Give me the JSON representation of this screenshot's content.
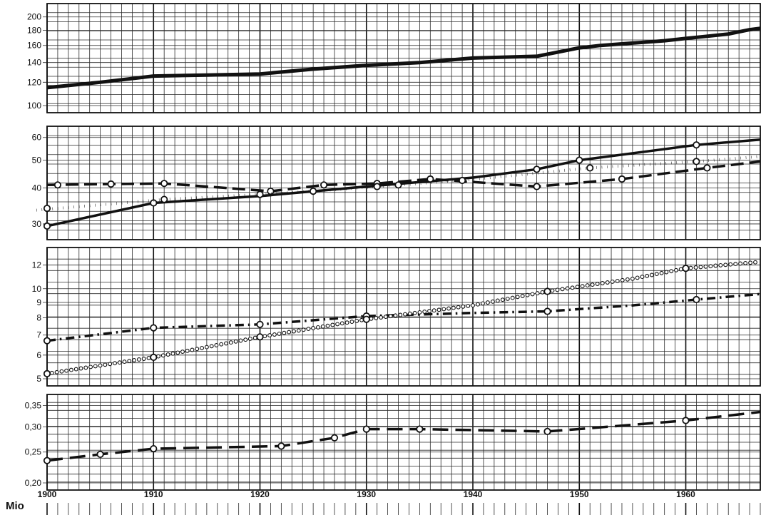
{
  "chart_data": {
    "type": "line",
    "unit_label": "Mio",
    "x_ticks": [
      "1900",
      "1910",
      "1920",
      "1930",
      "1940",
      "1950",
      "1960"
    ],
    "xlim": [
      1900,
      1967
    ],
    "panels": [
      {
        "id": "panel-1",
        "scale": "log",
        "ylim": [
          100,
          210
        ],
        "y_ticks": [
          {
            "v": 100,
            "label": "100"
          },
          {
            "v": 120,
            "label": "120"
          },
          {
            "v": 140,
            "label": "140"
          },
          {
            "v": 160,
            "label": "160"
          },
          {
            "v": 180,
            "label": "180"
          },
          {
            "v": 200,
            "label": "200"
          }
        ],
        "series": [
          {
            "style": "solid",
            "width": 5,
            "points": [
              [
                1900,
                115
              ],
              [
                1905,
                120
              ],
              [
                1910,
                126
              ],
              [
                1915,
                127
              ],
              [
                1920,
                128
              ],
              [
                1925,
                133
              ],
              [
                1930,
                137
              ],
              [
                1935,
                140
              ],
              [
                1940,
                145
              ],
              [
                1946,
                147
              ],
              [
                1950,
                157
              ],
              [
                1952,
                160
              ],
              [
                1955,
                163
              ],
              [
                1958,
                166
              ],
              [
                1960,
                169
              ],
              [
                1962,
                172
              ],
              [
                1964,
                175
              ],
              [
                1966,
                181
              ],
              [
                1967,
                183
              ]
            ],
            "markers": []
          }
        ]
      },
      {
        "id": "panel-2",
        "scale": "log",
        "ylim": [
          28,
          62
        ],
        "y_ticks": [
          {
            "v": 30,
            "label": "30"
          },
          {
            "v": 40,
            "label": "40"
          },
          {
            "v": 50,
            "label": "50"
          },
          {
            "v": 60,
            "label": "60"
          }
        ],
        "series": [
          {
            "style": "solid",
            "width": 3.5,
            "points": [
              [
                1900,
                29.5
              ],
              [
                1910,
                35.5
              ],
              [
                1920,
                37.5
              ],
              [
                1930,
                40.5
              ],
              [
                1940,
                43.5
              ],
              [
                1946,
                46.5
              ],
              [
                1950,
                50
              ],
              [
                1961,
                56.5
              ],
              [
                1967,
                59
              ]
            ],
            "markers": [
              [
                1900,
                29.5
              ],
              [
                1910,
                35.5
              ],
              [
                1946,
                46.5
              ],
              [
                1950,
                50
              ],
              [
                1961,
                56.5
              ]
            ]
          },
          {
            "style": "dash",
            "width": 3.5,
            "points": [
              [
                1900,
                41
              ],
              [
                1906,
                41.3
              ],
              [
                1911,
                41.5
              ],
              [
                1921,
                39
              ],
              [
                1926,
                41
              ],
              [
                1931,
                41.5
              ],
              [
                1936,
                43
              ],
              [
                1946,
                40.5
              ],
              [
                1954,
                43
              ],
              [
                1962,
                47
              ],
              [
                1967,
                49.5
              ]
            ],
            "markers": [
              [
                1901,
                41
              ],
              [
                1906,
                41.3
              ],
              [
                1911,
                41.5
              ],
              [
                1921,
                39
              ],
              [
                1926,
                41
              ],
              [
                1931,
                41.5
              ],
              [
                1936,
                43
              ],
              [
                1946,
                40.5
              ],
              [
                1954,
                43
              ],
              [
                1962,
                47
              ]
            ]
          },
          {
            "style": "dot",
            "width": 4,
            "points": [
              [
                1899,
                33.5
              ],
              [
                1911,
                36.5
              ],
              [
                1920,
                38
              ],
              [
                1925,
                39
              ],
              [
                1931,
                40.5
              ],
              [
                1933,
                41
              ],
              [
                1939,
                42.5
              ],
              [
                1951,
                47
              ],
              [
                1961,
                49.5
              ],
              [
                1967,
                51.5
              ]
            ],
            "markers": [
              [
                1900,
                34
              ],
              [
                1911,
                36.5
              ],
              [
                1920,
                38
              ],
              [
                1925,
                39
              ],
              [
                1931,
                40.5
              ],
              [
                1933,
                41
              ],
              [
                1939,
                42.5
              ],
              [
                1951,
                47
              ],
              [
                1961,
                49.5
              ]
            ]
          }
        ]
      },
      {
        "id": "panel-3",
        "scale": "log",
        "ylim": [
          5,
          13
        ],
        "y_ticks": [
          {
            "v": 5,
            "label": "5"
          },
          {
            "v": 6,
            "label": "6"
          },
          {
            "v": 7,
            "label": "7"
          },
          {
            "v": 8,
            "label": "8"
          },
          {
            "v": 9,
            "label": "9"
          },
          {
            "v": 10,
            "label": "10"
          },
          {
            "v": 12,
            "label": "12"
          }
        ],
        "series": [
          {
            "style": "dashdot",
            "width": 3.5,
            "points": [
              [
                1900,
                6.7
              ],
              [
                1910,
                7.4
              ],
              [
                1920,
                7.6
              ],
              [
                1930,
                8.1
              ],
              [
                1940,
                8.3
              ],
              [
                1947,
                8.4
              ],
              [
                1955,
                8.8
              ],
              [
                1961,
                9.2
              ],
              [
                1967,
                9.6
              ]
            ],
            "markers": [
              [
                1900,
                6.7
              ],
              [
                1910,
                7.4
              ],
              [
                1920,
                7.6
              ],
              [
                1930,
                8.1
              ],
              [
                1947,
                8.4
              ],
              [
                1961,
                9.2
              ]
            ]
          },
          {
            "style": "ring",
            "width": 2,
            "points": [
              [
                1900,
                5.2
              ],
              [
                1910,
                5.9
              ],
              [
                1920,
                6.9
              ],
              [
                1930,
                7.9
              ],
              [
                1940,
                8.8
              ],
              [
                1947,
                9.8
              ],
              [
                1955,
                10.8
              ],
              [
                1960,
                11.7
              ],
              [
                1967,
                12.3
              ]
            ],
            "markers": [
              [
                1900,
                5.2
              ],
              [
                1910,
                5.9
              ],
              [
                1920,
                6.9
              ],
              [
                1930,
                7.9
              ],
              [
                1947,
                9.8
              ],
              [
                1960,
                11.7
              ]
            ]
          }
        ]
      },
      {
        "id": "panel-4",
        "scale": "log",
        "ylim": [
          0.2,
          0.36
        ],
        "y_ticks": [
          {
            "v": 0.2,
            "label": "0,20"
          },
          {
            "v": 0.25,
            "label": "0,25"
          },
          {
            "v": 0.3,
            "label": "0,30"
          },
          {
            "v": 0.35,
            "label": "0,35"
          }
        ],
        "series": [
          {
            "style": "longdash",
            "width": 3.5,
            "points": [
              [
                1900,
                0.235
              ],
              [
                1905,
                0.246
              ],
              [
                1910,
                0.256
              ],
              [
                1922,
                0.261
              ],
              [
                1927,
                0.277
              ],
              [
                1930,
                0.295
              ],
              [
                1935,
                0.295
              ],
              [
                1947,
                0.29
              ],
              [
                1951,
                0.297
              ],
              [
                1960,
                0.314
              ],
              [
                1967,
                0.334
              ]
            ],
            "markers": [
              [
                1900,
                0.235
              ],
              [
                1905,
                0.246
              ],
              [
                1910,
                0.256
              ],
              [
                1922,
                0.261
              ],
              [
                1927,
                0.277
              ],
              [
                1930,
                0.295
              ],
              [
                1935,
                0.295
              ],
              [
                1947,
                0.29
              ],
              [
                1960,
                0.314
              ]
            ]
          }
        ]
      }
    ]
  }
}
